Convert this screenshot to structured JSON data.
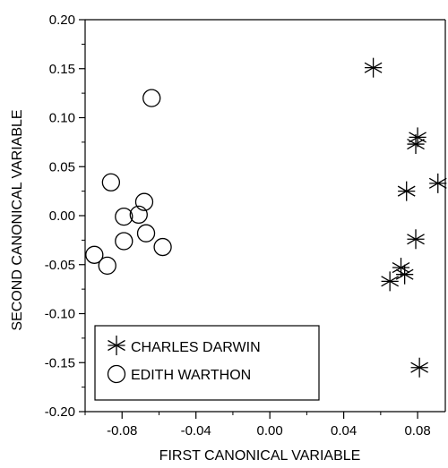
{
  "chart_data": {
    "type": "scatter",
    "xlabel": "FIRST CANONICAL VARIABLE",
    "ylabel": "SECOND CANONICAL VARIABLE",
    "xlim": [
      -0.1,
      0.095
    ],
    "ylim": [
      -0.2,
      0.2
    ],
    "x_ticks": [
      -0.08,
      -0.04,
      0.0,
      0.04,
      0.08
    ],
    "x_tick_labels": [
      "-0.08",
      "-0.04",
      "0.00",
      "0.04",
      "0.08"
    ],
    "y_ticks": [
      -0.2,
      -0.15,
      -0.1,
      -0.05,
      0.0,
      0.05,
      0.1,
      0.15,
      0.2
    ],
    "y_tick_labels": [
      "-0.20",
      "-0.15",
      "-0.10",
      "-0.05",
      "0.00",
      "0.05",
      "0.10",
      "0.15",
      "0.20"
    ],
    "grid": false,
    "legend_position": "bottom-left",
    "series": [
      {
        "name": "CHARLES DARWIN",
        "marker": "asterisk",
        "points": [
          {
            "x": 0.056,
            "y": 0.151
          },
          {
            "x": 0.08,
            "y": 0.08
          },
          {
            "x": 0.079,
            "y": 0.073
          },
          {
            "x": 0.091,
            "y": 0.033
          },
          {
            "x": 0.074,
            "y": 0.025
          },
          {
            "x": 0.079,
            "y": -0.024
          },
          {
            "x": 0.071,
            "y": -0.053
          },
          {
            "x": 0.073,
            "y": -0.06
          },
          {
            "x": 0.065,
            "y": -0.067
          },
          {
            "x": 0.081,
            "y": -0.155
          }
        ]
      },
      {
        "name": "EDITH WARTHON",
        "marker": "circle",
        "points": [
          {
            "x": -0.064,
            "y": 0.12
          },
          {
            "x": -0.086,
            "y": 0.034
          },
          {
            "x": -0.068,
            "y": 0.014
          },
          {
            "x": -0.079,
            "y": -0.001
          },
          {
            "x": -0.071,
            "y": 0.001
          },
          {
            "x": -0.079,
            "y": -0.026
          },
          {
            "x": -0.067,
            "y": -0.018
          },
          {
            "x": -0.058,
            "y": -0.032
          },
          {
            "x": -0.095,
            "y": -0.04
          },
          {
            "x": -0.088,
            "y": -0.051
          }
        ]
      }
    ]
  }
}
